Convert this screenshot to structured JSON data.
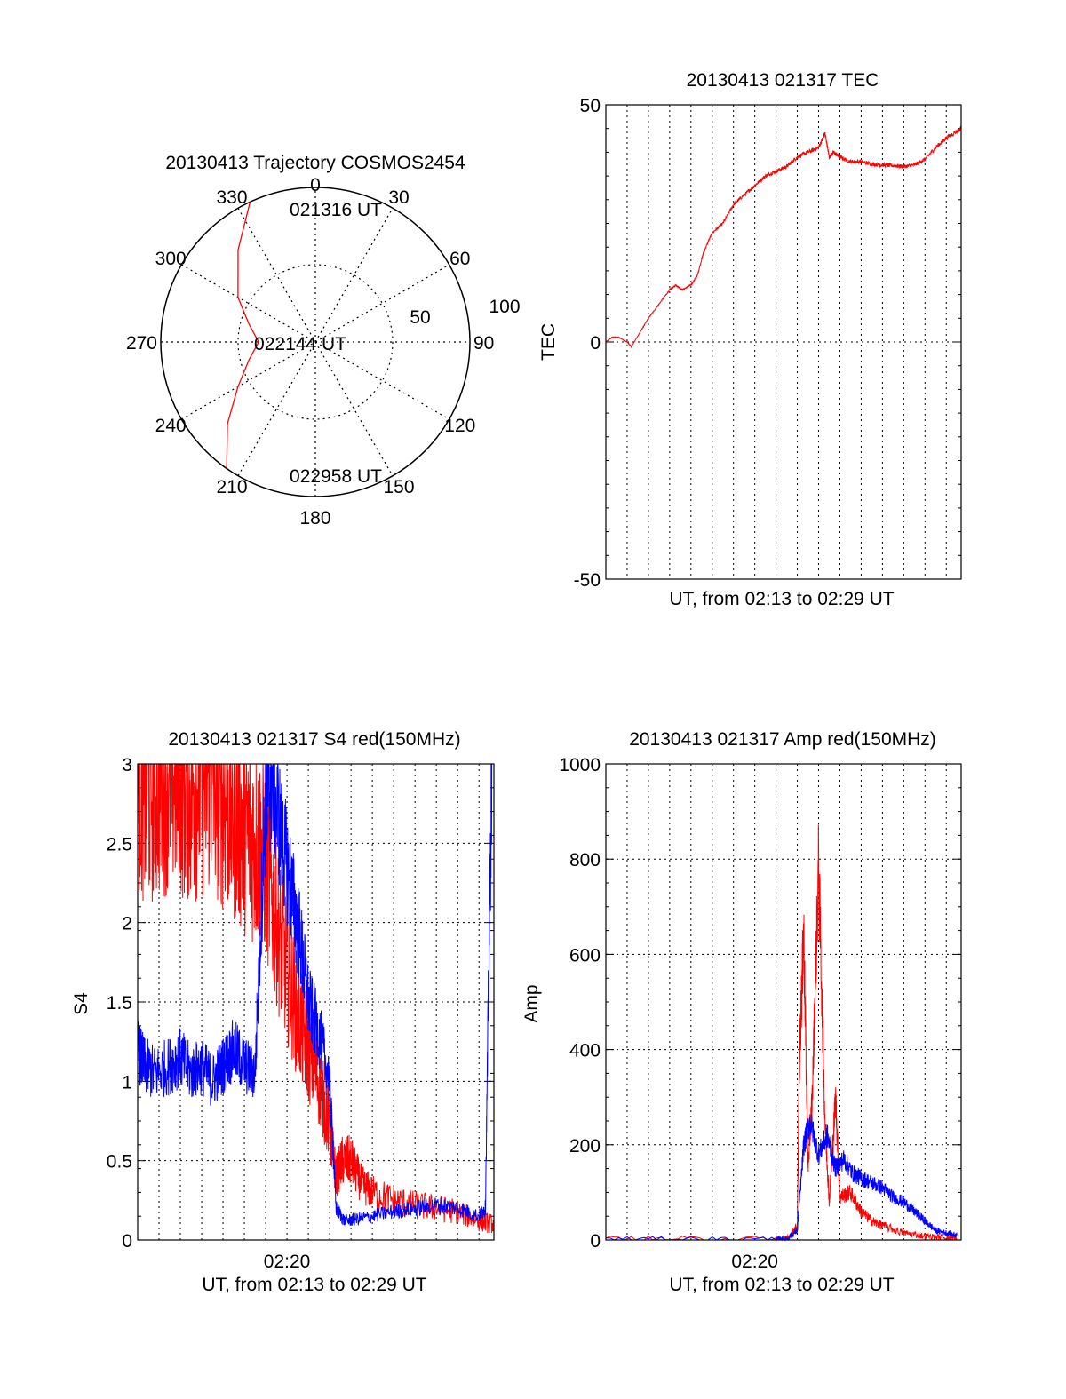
{
  "colors": {
    "red": "#ff0000",
    "blue": "#0000ff",
    "axis": "#000000",
    "grid": "#000000"
  },
  "chart_data": [
    {
      "type": "polar",
      "title": "20130413 Trajectory COSMOS2454",
      "azimuth_labels": [
        "0",
        "30",
        "60",
        "90",
        "120",
        "150",
        "180",
        "210",
        "240",
        "270",
        "300",
        "330"
      ],
      "radial_labels": [
        "50",
        "100"
      ],
      "grid": "dotted",
      "points": [
        {
          "label": "021316 UT",
          "az": 335,
          "el": 0
        },
        {
          "label": "022144 UT",
          "az": 270,
          "el": 57
        },
        {
          "label": "022958 UT",
          "az": 215,
          "el": 0
        }
      ],
      "series": [
        {
          "color": "red",
          "az": [
            335,
            320,
            300,
            285,
            270,
            255,
            240,
            227,
            215
          ],
          "el": [
            0,
            20,
            38,
            50,
            57,
            50,
            38,
            20,
            0
          ]
        }
      ]
    },
    {
      "type": "line",
      "title": "20130413 021317 TEC",
      "ylabel": "TEC",
      "xlabel": "UT, from 02:13 to 02:29 UT",
      "xlim": [
        0,
        16.7
      ],
      "ylim": [
        -50,
        50
      ],
      "yticks": [
        "50",
        "0",
        "-50"
      ],
      "grid": "dotted",
      "series": [
        {
          "color": "red",
          "x": [
            0,
            0.3,
            0.6,
            1.0,
            1.2,
            1.6,
            2.0,
            2.5,
            3.0,
            3.3,
            3.6,
            4.0,
            4.3,
            4.6,
            5.0,
            5.5,
            6.0,
            6.5,
            7.0,
            7.5,
            8.0,
            8.5,
            9.0,
            9.5,
            10.0,
            10.3,
            10.5,
            10.7,
            11.0,
            11.5,
            12.0,
            12.5,
            13.0,
            13.5,
            14.0,
            14.5,
            15.0,
            15.5,
            16.0,
            16.7
          ],
          "y": [
            0,
            1,
            1,
            0,
            -1,
            2,
            5,
            8,
            11,
            12,
            11,
            12,
            14,
            19,
            23,
            25,
            29,
            31,
            33,
            35,
            36,
            37,
            39,
            40,
            41,
            44,
            39,
            40,
            39,
            38,
            38,
            37.5,
            37.3,
            37.2,
            37,
            37.3,
            38.5,
            41,
            43,
            45
          ]
        }
      ]
    },
    {
      "type": "line",
      "title": "20130413 021317 S4 red(150MHz)",
      "ylabel": "S4",
      "xlabel": "UT, from 02:13 to 02:29 UT",
      "xlim": [
        0,
        16.7
      ],
      "ylim": [
        0,
        3
      ],
      "yticks": [
        "3",
        "2.5",
        "2",
        "1.5",
        "1",
        "0.5",
        "0"
      ],
      "xticks": [
        {
          "x": 7,
          "label": "02:20"
        }
      ],
      "grid": "dotted",
      "series": [
        {
          "name": "",
          "color": "red",
          "x": [
            0,
            0.4,
            1.0,
            1.5,
            2.0,
            2.5,
            3.0,
            3.5,
            4.0,
            4.5,
            5.0,
            5.5,
            6.0,
            6.5,
            7.0,
            7.5,
            8.0,
            8.5,
            9.0,
            9.3,
            9.6,
            10.0,
            10.5,
            11.0,
            12.0,
            13.0,
            14.0,
            15.0,
            16.0,
            16.7
          ],
          "y": [
            3.0,
            2.8,
            2.9,
            2.95,
            2.9,
            2.85,
            2.9,
            2.95,
            2.8,
            2.7,
            2.6,
            2.5,
            2.4,
            2.0,
            1.7,
            1.4,
            1.2,
            1.0,
            0.7,
            0.4,
            0.5,
            0.5,
            0.35,
            0.3,
            0.25,
            0.22,
            0.2,
            0.18,
            0.12,
            0.1
          ]
        },
        {
          "name": "",
          "color": "blue",
          "x": [
            0,
            0.3,
            0.8,
            1.5,
            2.0,
            2.5,
            3.0,
            3.5,
            4.0,
            4.5,
            5.0,
            5.5,
            6.0,
            6.3,
            6.8,
            7.2,
            7.6,
            8.0,
            8.5,
            9.0,
            9.3,
            9.7,
            10.2,
            11.0,
            12.0,
            13.0,
            14.0,
            15.0,
            16.0,
            16.3,
            16.6
          ],
          "y": [
            1.2,
            1.1,
            1.05,
            1.1,
            1.15,
            1.05,
            1.1,
            1.0,
            1.1,
            1.2,
            1.1,
            1.05,
            2.8,
            2.9,
            2.5,
            2.2,
            1.9,
            1.5,
            1.3,
            1.0,
            0.2,
            0.12,
            0.13,
            0.15,
            0.18,
            0.2,
            0.22,
            0.2,
            0.15,
            0.2,
            3.0
          ]
        }
      ]
    },
    {
      "type": "line",
      "title": "20130413 021317 Amp red(150MHz)",
      "ylabel": "Amp",
      "xlabel": "UT, from 02:13 to 02:29 UT",
      "xlim": [
        0,
        16.7
      ],
      "ylim": [
        0,
        1000
      ],
      "yticks": [
        "1000",
        "800",
        "600",
        "400",
        "200",
        "0"
      ],
      "xticks": [
        {
          "x": 7,
          "label": "02:20"
        }
      ],
      "grid": "dotted",
      "series": [
        {
          "name": "",
          "color": "red",
          "x": [
            0,
            8.0,
            8.5,
            9.0,
            9.1,
            9.3,
            9.5,
            9.7,
            10.0,
            10.3,
            10.5,
            10.8,
            11.0,
            11.5,
            12.0,
            12.5,
            13.0,
            14.0,
            15.0,
            16.0,
            16.5
          ],
          "y": [
            2,
            2,
            2,
            30,
            380,
            650,
            150,
            300,
            790,
            250,
            80,
            300,
            90,
            100,
            60,
            40,
            30,
            15,
            8,
            5,
            3
          ]
        },
        {
          "name": "",
          "color": "blue",
          "x": [
            0,
            8.0,
            8.5,
            9.0,
            9.3,
            9.6,
            10.0,
            10.4,
            10.8,
            11.2,
            11.6,
            12.0,
            12.5,
            13.0,
            13.5,
            14.0,
            14.5,
            15.0,
            15.5,
            16.0,
            16.5
          ],
          "y": [
            2,
            2,
            2,
            20,
            200,
            250,
            180,
            220,
            150,
            170,
            140,
            130,
            120,
            110,
            90,
            80,
            60,
            40,
            20,
            15,
            10
          ]
        }
      ]
    }
  ]
}
